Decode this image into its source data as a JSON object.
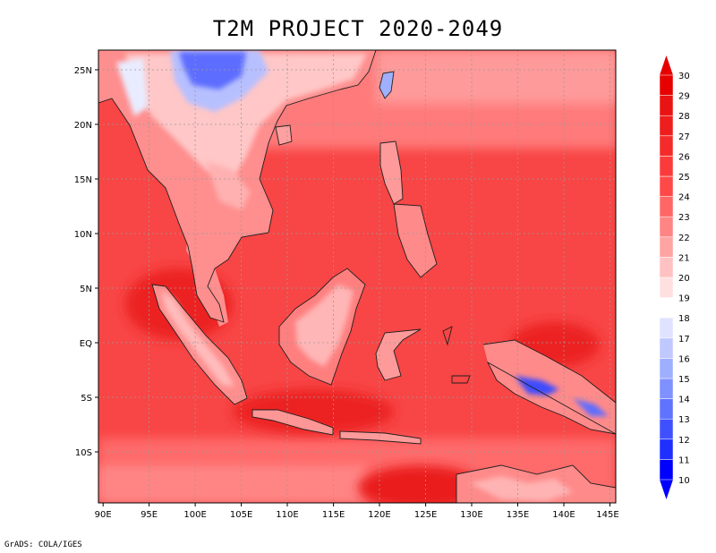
{
  "title": "T2M PROJECT 2020-2049",
  "footer": "GrADS: COLA/IGES",
  "colorbar": {
    "labels": [
      "10",
      "11",
      "12",
      "13",
      "14",
      "15",
      "16",
      "17",
      "18",
      "19",
      "20",
      "21",
      "22",
      "23",
      "24",
      "25",
      "26",
      "27",
      "28",
      "29",
      "30"
    ],
    "colors": [
      "#0000ff",
      "#1f2fff",
      "#3f51ff",
      "#5f73ff",
      "#7f91ff",
      "#9fafff",
      "#bfc9ff",
      "#dfe3ff",
      "#ffffff",
      "#ffe0e0",
      "#ffc1c1",
      "#ffa3a3",
      "#ff8585",
      "#ff6767",
      "#ff4949",
      "#fb3b3b",
      "#f52a2a",
      "#ee1e1e",
      "#ea1313",
      "#e60000"
    ]
  },
  "axes": {
    "x_ticks": [
      "90E",
      "95E",
      "100E",
      "105E",
      "110E",
      "115E",
      "120E",
      "125E",
      "130E",
      "135E",
      "140E",
      "145E"
    ],
    "y_ticks": [
      "25N",
      "20N",
      "15N",
      "10N",
      "5N",
      "EQ",
      "5S",
      "10S"
    ]
  },
  "chart_data": {
    "type": "heatmap",
    "title": "T2M PROJECT 2020-2049",
    "xlim": [
      89.5,
      146.5
    ],
    "ylim": [
      -14.5,
      27
    ],
    "x_ticks": [
      90,
      95,
      100,
      105,
      110,
      115,
      120,
      125,
      130,
      135,
      140,
      145
    ],
    "y_ticks": [
      25,
      20,
      15,
      10,
      5,
      0,
      -5,
      -10
    ],
    "colorbar_range": [
      10,
      30
    ],
    "colorbar_step": 1,
    "grid": true
  }
}
